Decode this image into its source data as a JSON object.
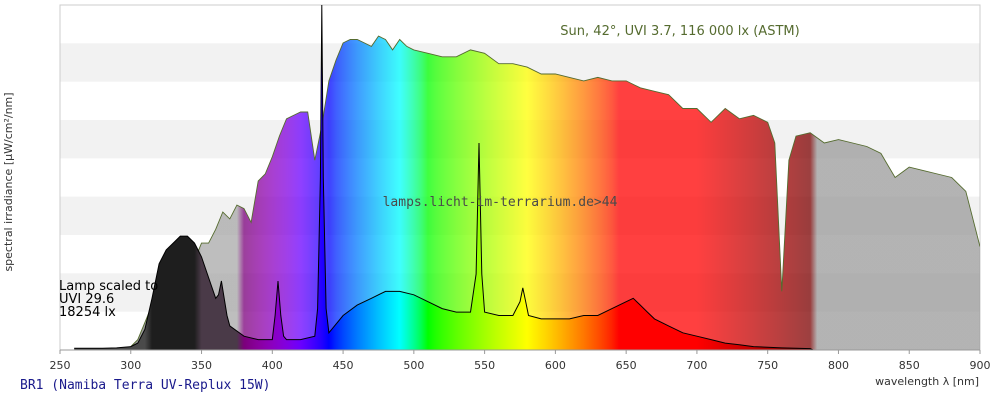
{
  "chart_data": {
    "type": "area",
    "title": "",
    "xlabel": "wavelength λ [nm]",
    "ylabel": "spectral irradiance [µW/cm²/nm]",
    "xlim": [
      250,
      900
    ],
    "ylim": [
      0,
      1
    ],
    "x_ticks": [
      250,
      300,
      350,
      400,
      450,
      500,
      550,
      600,
      650,
      700,
      750,
      800,
      850,
      900
    ],
    "grid": "horizontal bands",
    "series": [
      {
        "name": "Sun, 42°, UVI 3.7, 116 000 lx (ASTM)",
        "x": [
          290,
          295,
          300,
          305,
          310,
          315,
          320,
          325,
          330,
          335,
          340,
          345,
          350,
          355,
          360,
          365,
          370,
          375,
          380,
          385,
          390,
          395,
          400,
          405,
          410,
          415,
          420,
          425,
          430,
          435,
          440,
          445,
          450,
          455,
          460,
          465,
          470,
          475,
          480,
          485,
          490,
          495,
          500,
          510,
          520,
          530,
          540,
          550,
          560,
          570,
          580,
          590,
          600,
          610,
          620,
          630,
          640,
          650,
          660,
          670,
          680,
          690,
          700,
          710,
          720,
          730,
          740,
          750,
          755,
          760,
          765,
          770,
          780,
          790,
          800,
          810,
          820,
          830,
          840,
          850,
          860,
          870,
          880,
          890,
          900
        ],
        "y": [
          0.0,
          0.002,
          0.01,
          0.03,
          0.08,
          0.13,
          0.2,
          0.24,
          0.23,
          0.26,
          0.27,
          0.26,
          0.31,
          0.31,
          0.35,
          0.4,
          0.38,
          0.42,
          0.41,
          0.37,
          0.49,
          0.51,
          0.56,
          0.62,
          0.67,
          0.68,
          0.69,
          0.69,
          0.55,
          0.65,
          0.78,
          0.84,
          0.89,
          0.9,
          0.9,
          0.89,
          0.88,
          0.91,
          0.9,
          0.87,
          0.9,
          0.88,
          0.87,
          0.86,
          0.85,
          0.85,
          0.87,
          0.86,
          0.83,
          0.83,
          0.82,
          0.8,
          0.8,
          0.79,
          0.78,
          0.79,
          0.78,
          0.78,
          0.76,
          0.75,
          0.74,
          0.7,
          0.7,
          0.66,
          0.7,
          0.67,
          0.68,
          0.66,
          0.6,
          0.17,
          0.55,
          0.62,
          0.63,
          0.6,
          0.61,
          0.6,
          0.59,
          0.57,
          0.5,
          0.53,
          0.52,
          0.51,
          0.5,
          0.46,
          0.3
        ]
      },
      {
        "name": "BR1 (Namiba Terra UV-Replux 15W)",
        "x": [
          260,
          280,
          290,
          300,
          305,
          310,
          315,
          320,
          325,
          330,
          335,
          340,
          345,
          350,
          355,
          360,
          362,
          364,
          366,
          368,
          370,
          380,
          390,
          400,
          402,
          404,
          406,
          408,
          410,
          420,
          430,
          432,
          434,
          435,
          436,
          438,
          440,
          450,
          460,
          470,
          480,
          490,
          500,
          510,
          520,
          530,
          540,
          544,
          546,
          548,
          550,
          560,
          570,
          575,
          577,
          579,
          581,
          590,
          600,
          610,
          620,
          630,
          640,
          650,
          655,
          660,
          665,
          670,
          680,
          690,
          700,
          710,
          720,
          730,
          740,
          750,
          760,
          770,
          780,
          782
        ],
        "y": [
          0.005,
          0.005,
          0.006,
          0.01,
          0.02,
          0.06,
          0.15,
          0.25,
          0.29,
          0.31,
          0.33,
          0.33,
          0.31,
          0.27,
          0.21,
          0.15,
          0.16,
          0.2,
          0.15,
          0.1,
          0.07,
          0.04,
          0.03,
          0.03,
          0.1,
          0.2,
          0.1,
          0.04,
          0.03,
          0.03,
          0.04,
          0.12,
          0.5,
          1.0,
          0.5,
          0.12,
          0.05,
          0.1,
          0.13,
          0.15,
          0.17,
          0.17,
          0.16,
          0.14,
          0.12,
          0.11,
          0.11,
          0.22,
          0.6,
          0.22,
          0.11,
          0.1,
          0.1,
          0.14,
          0.18,
          0.14,
          0.1,
          0.09,
          0.09,
          0.09,
          0.1,
          0.1,
          0.12,
          0.14,
          0.15,
          0.13,
          0.11,
          0.09,
          0.07,
          0.05,
          0.04,
          0.03,
          0.02,
          0.015,
          0.01,
          0.008,
          0.006,
          0.005,
          0.004,
          0.0
        ]
      }
    ],
    "annotations": [
      "Sun, 42°, UVI 3.7, 116 000 lx (ASTM)",
      "lamps.licht-im-terrarium.de>44",
      "Lamp scaled to",
      "UVI 29.6",
      "18254 lx"
    ],
    "footer_label": "BR1 (Namiba Terra UV-Replux 15W)",
    "colors": {
      "background_band": "#f2f2f2",
      "sun_line": "#556b2f",
      "lamp_line": "#000000",
      "sun_text": "#556b2f",
      "footer_text": "#1a1a8c"
    }
  }
}
